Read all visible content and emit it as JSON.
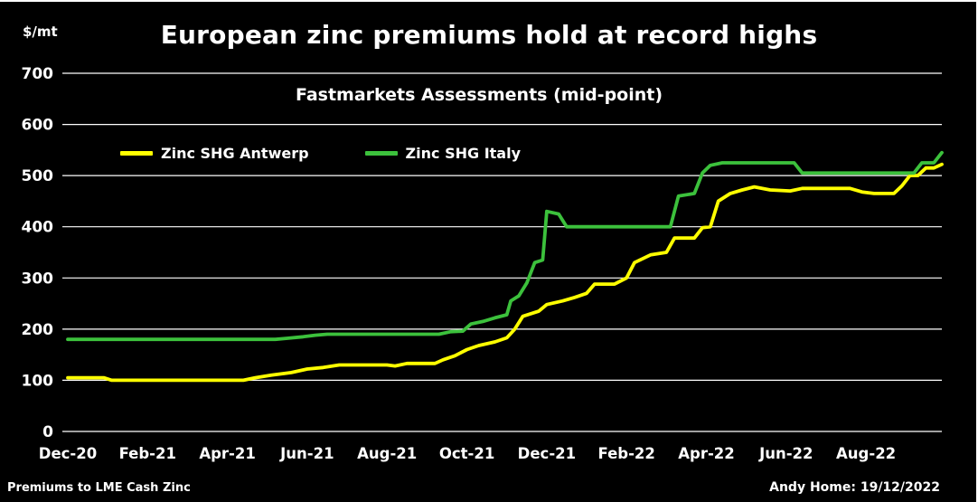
{
  "frame": {
    "footer_left": "Premiums to LME Cash Zinc",
    "footer_right": "Andy Home: 19/12/2022"
  },
  "colors": {
    "background": "#000000",
    "text": "#ffffff",
    "grid": "#ffffff",
    "antwerp_line": "#ffff00",
    "italy_line": "#3cc13c"
  },
  "chart_data": {
    "type": "line",
    "title": "European zinc premiums hold at record highs",
    "subtitle": "Fastmarkets Assessments (mid-point)",
    "ylabel": "$/mt",
    "ylim": [
      0,
      700
    ],
    "y_ticks": [
      0,
      100,
      200,
      300,
      400,
      500,
      600,
      700
    ],
    "xlim": [
      0,
      21.9
    ],
    "x_unit": "months since Dec-20",
    "x_tick_positions": [
      0,
      2,
      4,
      6,
      8,
      10,
      12,
      14,
      16,
      18,
      20
    ],
    "x_tick_labels": [
      "Dec-20",
      "Feb-21",
      "Apr-21",
      "Jun-21",
      "Aug-21",
      "Oct-21",
      "Dec-21",
      "Feb-22",
      "Apr-22",
      "Jun-22",
      "Aug-22"
    ],
    "grid": "horizontal",
    "legend_position": "top-left",
    "series": [
      {
        "name": "Zinc SHG Antwerp",
        "color": "#ffff00",
        "points": [
          [
            0,
            105
          ],
          [
            0.9,
            105
          ],
          [
            1.1,
            100
          ],
          [
            4.4,
            100
          ],
          [
            4.7,
            105
          ],
          [
            5.1,
            110
          ],
          [
            5.6,
            115
          ],
          [
            6.0,
            122
          ],
          [
            6.4,
            125
          ],
          [
            6.8,
            130
          ],
          [
            8.0,
            130
          ],
          [
            8.2,
            128
          ],
          [
            8.5,
            133
          ],
          [
            9.2,
            133
          ],
          [
            9.4,
            140
          ],
          [
            9.7,
            148
          ],
          [
            10.0,
            160
          ],
          [
            10.3,
            168
          ],
          [
            10.7,
            175
          ],
          [
            11.0,
            183
          ],
          [
            11.2,
            200
          ],
          [
            11.4,
            225
          ],
          [
            11.8,
            235
          ],
          [
            12.0,
            248
          ],
          [
            12.4,
            255
          ],
          [
            12.7,
            262
          ],
          [
            13.0,
            270
          ],
          [
            13.2,
            288
          ],
          [
            13.7,
            288
          ],
          [
            14.0,
            300
          ],
          [
            14.2,
            330
          ],
          [
            14.6,
            345
          ],
          [
            15.0,
            350
          ],
          [
            15.2,
            378
          ],
          [
            15.7,
            378
          ],
          [
            15.9,
            398
          ],
          [
            16.1,
            400
          ],
          [
            16.3,
            450
          ],
          [
            16.6,
            465
          ],
          [
            16.9,
            472
          ],
          [
            17.2,
            478
          ],
          [
            17.6,
            472
          ],
          [
            18.1,
            470
          ],
          [
            18.4,
            475
          ],
          [
            19.6,
            475
          ],
          [
            19.9,
            468
          ],
          [
            20.2,
            465
          ],
          [
            20.7,
            465
          ],
          [
            20.9,
            480
          ],
          [
            21.1,
            500
          ],
          [
            21.3,
            500
          ],
          [
            21.5,
            515
          ],
          [
            21.7,
            515
          ],
          [
            21.9,
            522
          ]
        ]
      },
      {
        "name": "Zinc SHG Italy",
        "color": "#3cc13c",
        "points": [
          [
            0,
            180
          ],
          [
            5.2,
            180
          ],
          [
            5.5,
            182
          ],
          [
            5.9,
            185
          ],
          [
            6.2,
            188
          ],
          [
            6.5,
            190
          ],
          [
            9.3,
            190
          ],
          [
            9.6,
            195
          ],
          [
            9.9,
            196
          ],
          [
            10.1,
            210
          ],
          [
            10.4,
            215
          ],
          [
            10.7,
            222
          ],
          [
            11.0,
            228
          ],
          [
            11.1,
            255
          ],
          [
            11.3,
            265
          ],
          [
            11.5,
            290
          ],
          [
            11.7,
            330
          ],
          [
            11.9,
            335
          ],
          [
            12.0,
            430
          ],
          [
            12.3,
            425
          ],
          [
            12.5,
            400
          ],
          [
            15.1,
            400
          ],
          [
            15.3,
            460
          ],
          [
            15.7,
            465
          ],
          [
            15.9,
            505
          ],
          [
            16.1,
            520
          ],
          [
            16.4,
            525
          ],
          [
            18.2,
            525
          ],
          [
            18.4,
            505
          ],
          [
            21.2,
            505
          ],
          [
            21.4,
            525
          ],
          [
            21.7,
            525
          ],
          [
            21.9,
            545
          ]
        ]
      }
    ]
  }
}
